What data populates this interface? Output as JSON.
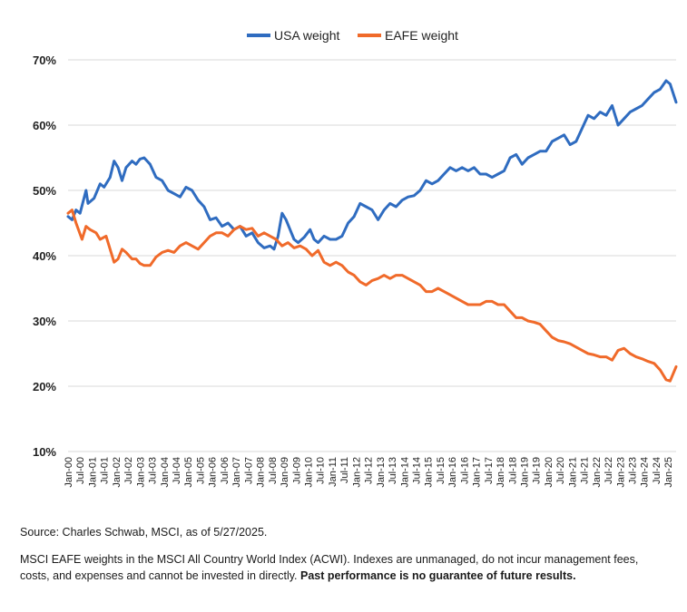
{
  "legend": [
    "USA weight",
    "EAFE weight"
  ],
  "colors": {
    "usa": "#2f6cc0",
    "eafe": "#f06a2a",
    "grid": "#d9d9d9"
  },
  "notes": {
    "source": "Source: Charles Schwab, MSCI, as of 5/27/2025.",
    "disclaimer": "MSCI EAFE weights in the MSCI All Country World Index (ACWI). Indexes are unmanaged, do not incur management fees, costs, and expenses and cannot be invested in directly.",
    "disclaimer_bold": "Past performance is no guarantee of future results."
  },
  "chart_data": {
    "type": "line",
    "title": "",
    "xlabel": "",
    "ylabel": "",
    "ylim": [
      10,
      70
    ],
    "yticks": [
      "10%",
      "20%",
      "30%",
      "40%",
      "50%",
      "60%",
      "70%"
    ],
    "grid": true,
    "legend_position": "top-center",
    "x_tick_labels": [
      "Jan-00",
      "Jul-00",
      "Jan-01",
      "Jul-01",
      "Jan-02",
      "Jul-02",
      "Jan-03",
      "Jul-03",
      "Jan-04",
      "Jul-04",
      "Jan-05",
      "Jul-05",
      "Jan-06",
      "Jul-06",
      "Jan-07",
      "Jul-07",
      "Jan-08",
      "Jul-08",
      "Jan-09",
      "Jul-09",
      "Jan-10",
      "Jul-10",
      "Jan-11",
      "Jul-11",
      "Jan-12",
      "Jul-12",
      "Jan-13",
      "Jul-13",
      "Jan-14",
      "Jul-14",
      "Jan-15",
      "Jul-15",
      "Jan-16",
      "Jul-16",
      "Jan-17",
      "Jul-17",
      "Jan-18",
      "Jul-18",
      "Jan-19",
      "Jul-19",
      "Jan-20",
      "Jul-20",
      "Jan-21",
      "Jul-21",
      "Jan-22",
      "Jul-22",
      "Jan-23",
      "Jul-23",
      "Jan-24",
      "Jul-24",
      "Jan-25"
    ],
    "x_range": [
      "2000-01",
      "2025-05"
    ],
    "series": [
      {
        "name": "USA weight",
        "color": "#2f6cc0",
        "points": [
          [
            "2000-01",
            46
          ],
          [
            "2000-03",
            45.5
          ],
          [
            "2000-05",
            47
          ],
          [
            "2000-07",
            46.5
          ],
          [
            "2000-10",
            50
          ],
          [
            "2000-11",
            48
          ],
          [
            "2001-02",
            48.8
          ],
          [
            "2001-05",
            51
          ],
          [
            "2001-07",
            50.5
          ],
          [
            "2001-10",
            52
          ],
          [
            "2001-12",
            54.5
          ],
          [
            "2002-02",
            53.5
          ],
          [
            "2002-04",
            51.5
          ],
          [
            "2002-06",
            53.5
          ],
          [
            "2002-09",
            54.5
          ],
          [
            "2002-11",
            54
          ],
          [
            "2003-01",
            54.8
          ],
          [
            "2003-03",
            55
          ],
          [
            "2003-06",
            54
          ],
          [
            "2003-09",
            52
          ],
          [
            "2003-12",
            51.5
          ],
          [
            "2004-03",
            50
          ],
          [
            "2004-06",
            49.5
          ],
          [
            "2004-09",
            49
          ],
          [
            "2004-12",
            50.5
          ],
          [
            "2005-03",
            50
          ],
          [
            "2005-06",
            48.5
          ],
          [
            "2005-09",
            47.5
          ],
          [
            "2005-12",
            45.5
          ],
          [
            "2006-03",
            45.8
          ],
          [
            "2006-06",
            44.5
          ],
          [
            "2006-09",
            45
          ],
          [
            "2006-12",
            44
          ],
          [
            "2007-03",
            44.5
          ],
          [
            "2007-06",
            43
          ],
          [
            "2007-09",
            43.5
          ],
          [
            "2007-12",
            42
          ],
          [
            "2008-03",
            41.2
          ],
          [
            "2008-06",
            41.5
          ],
          [
            "2008-08",
            41
          ],
          [
            "2008-10",
            43
          ],
          [
            "2008-12",
            46.5
          ],
          [
            "2009-02",
            45.5
          ],
          [
            "2009-04",
            44
          ],
          [
            "2009-06",
            42.5
          ],
          [
            "2009-08",
            42
          ],
          [
            "2009-11",
            42.8
          ],
          [
            "2010-02",
            44
          ],
          [
            "2010-04",
            42.5
          ],
          [
            "2010-06",
            42
          ],
          [
            "2010-09",
            43
          ],
          [
            "2010-12",
            42.5
          ],
          [
            "2011-03",
            42.5
          ],
          [
            "2011-06",
            43
          ],
          [
            "2011-09",
            45
          ],
          [
            "2011-12",
            46
          ],
          [
            "2012-03",
            48
          ],
          [
            "2012-06",
            47.5
          ],
          [
            "2012-09",
            47
          ],
          [
            "2012-12",
            45.5
          ],
          [
            "2013-03",
            47
          ],
          [
            "2013-06",
            48
          ],
          [
            "2013-09",
            47.5
          ],
          [
            "2013-12",
            48.5
          ],
          [
            "2014-03",
            49
          ],
          [
            "2014-06",
            49.2
          ],
          [
            "2014-09",
            50
          ],
          [
            "2014-12",
            51.5
          ],
          [
            "2015-03",
            51
          ],
          [
            "2015-06",
            51.5
          ],
          [
            "2015-09",
            52.5
          ],
          [
            "2015-12",
            53.5
          ],
          [
            "2016-03",
            53
          ],
          [
            "2016-06",
            53.5
          ],
          [
            "2016-09",
            53
          ],
          [
            "2016-12",
            53.5
          ],
          [
            "2017-03",
            52.5
          ],
          [
            "2017-06",
            52.5
          ],
          [
            "2017-09",
            52
          ],
          [
            "2017-12",
            52.5
          ],
          [
            "2018-03",
            53
          ],
          [
            "2018-06",
            55
          ],
          [
            "2018-09",
            55.5
          ],
          [
            "2018-12",
            54
          ],
          [
            "2019-03",
            55
          ],
          [
            "2019-06",
            55.5
          ],
          [
            "2019-09",
            56
          ],
          [
            "2019-12",
            56
          ],
          [
            "2020-03",
            57.5
          ],
          [
            "2020-06",
            58
          ],
          [
            "2020-09",
            58.5
          ],
          [
            "2020-12",
            57
          ],
          [
            "2021-03",
            57.5
          ],
          [
            "2021-06",
            59.5
          ],
          [
            "2021-09",
            61.5
          ],
          [
            "2021-12",
            61
          ],
          [
            "2022-03",
            62
          ],
          [
            "2022-06",
            61.5
          ],
          [
            "2022-09",
            63
          ],
          [
            "2022-12",
            60
          ],
          [
            "2023-03",
            61
          ],
          [
            "2023-06",
            62
          ],
          [
            "2023-09",
            62.5
          ],
          [
            "2023-12",
            63
          ],
          [
            "2024-03",
            64
          ],
          [
            "2024-06",
            65
          ],
          [
            "2024-09",
            65.5
          ],
          [
            "2024-12",
            66.8
          ],
          [
            "2025-02",
            66.3
          ],
          [
            "2025-05",
            63.5
          ]
        ]
      },
      {
        "name": "EAFE weight",
        "color": "#f06a2a",
        "points": [
          [
            "2000-01",
            46.5
          ],
          [
            "2000-03",
            47
          ],
          [
            "2000-05",
            45
          ],
          [
            "2000-08",
            42.5
          ],
          [
            "2000-10",
            44.5
          ],
          [
            "2000-12",
            44
          ],
          [
            "2001-03",
            43.5
          ],
          [
            "2001-05",
            42.5
          ],
          [
            "2001-08",
            43
          ],
          [
            "2001-10",
            41
          ],
          [
            "2001-12",
            39
          ],
          [
            "2002-02",
            39.5
          ],
          [
            "2002-04",
            41
          ],
          [
            "2002-06",
            40.5
          ],
          [
            "2002-09",
            39.5
          ],
          [
            "2002-11",
            39.5
          ],
          [
            "2003-01",
            38.8
          ],
          [
            "2003-03",
            38.5
          ],
          [
            "2003-06",
            38.5
          ],
          [
            "2003-09",
            39.8
          ],
          [
            "2003-12",
            40.5
          ],
          [
            "2004-03",
            40.8
          ],
          [
            "2004-06",
            40.5
          ],
          [
            "2004-09",
            41.5
          ],
          [
            "2004-12",
            42
          ],
          [
            "2005-03",
            41.5
          ],
          [
            "2005-06",
            41
          ],
          [
            "2005-09",
            42
          ],
          [
            "2005-12",
            43
          ],
          [
            "2006-03",
            43.5
          ],
          [
            "2006-06",
            43.5
          ],
          [
            "2006-09",
            43
          ],
          [
            "2006-12",
            44
          ],
          [
            "2007-03",
            44.5
          ],
          [
            "2007-06",
            44
          ],
          [
            "2007-09",
            44.2
          ],
          [
            "2007-12",
            43
          ],
          [
            "2008-03",
            43.5
          ],
          [
            "2008-06",
            43
          ],
          [
            "2008-09",
            42.5
          ],
          [
            "2008-12",
            41.5
          ],
          [
            "2009-03",
            42
          ],
          [
            "2009-06",
            41.2
          ],
          [
            "2009-09",
            41.5
          ],
          [
            "2009-12",
            41
          ],
          [
            "2010-03",
            40
          ],
          [
            "2010-06",
            40.8
          ],
          [
            "2010-09",
            39
          ],
          [
            "2010-12",
            38.5
          ],
          [
            "2011-03",
            39
          ],
          [
            "2011-06",
            38.5
          ],
          [
            "2011-09",
            37.5
          ],
          [
            "2011-12",
            37
          ],
          [
            "2012-03",
            36
          ],
          [
            "2012-06",
            35.5
          ],
          [
            "2012-09",
            36.2
          ],
          [
            "2012-12",
            36.5
          ],
          [
            "2013-03",
            37
          ],
          [
            "2013-06",
            36.5
          ],
          [
            "2013-09",
            37
          ],
          [
            "2013-12",
            37
          ],
          [
            "2014-03",
            36.5
          ],
          [
            "2014-06",
            36
          ],
          [
            "2014-09",
            35.5
          ],
          [
            "2014-12",
            34.5
          ],
          [
            "2015-03",
            34.5
          ],
          [
            "2015-06",
            35
          ],
          [
            "2015-09",
            34.5
          ],
          [
            "2015-12",
            34
          ],
          [
            "2016-03",
            33.5
          ],
          [
            "2016-06",
            33
          ],
          [
            "2016-09",
            32.5
          ],
          [
            "2016-12",
            32.5
          ],
          [
            "2017-03",
            32.5
          ],
          [
            "2017-06",
            33
          ],
          [
            "2017-09",
            33
          ],
          [
            "2017-12",
            32.5
          ],
          [
            "2018-03",
            32.5
          ],
          [
            "2018-06",
            31.5
          ],
          [
            "2018-09",
            30.5
          ],
          [
            "2018-12",
            30.5
          ],
          [
            "2019-03",
            30
          ],
          [
            "2019-06",
            29.8
          ],
          [
            "2019-09",
            29.5
          ],
          [
            "2019-12",
            28.5
          ],
          [
            "2020-03",
            27.5
          ],
          [
            "2020-06",
            27
          ],
          [
            "2020-09",
            26.8
          ],
          [
            "2020-12",
            26.5
          ],
          [
            "2021-03",
            26
          ],
          [
            "2021-06",
            25.5
          ],
          [
            "2021-09",
            25
          ],
          [
            "2021-12",
            24.8
          ],
          [
            "2022-03",
            24.5
          ],
          [
            "2022-06",
            24.5
          ],
          [
            "2022-09",
            24
          ],
          [
            "2022-12",
            25.5
          ],
          [
            "2023-03",
            25.8
          ],
          [
            "2023-06",
            25
          ],
          [
            "2023-09",
            24.5
          ],
          [
            "2023-12",
            24.2
          ],
          [
            "2024-03",
            23.8
          ],
          [
            "2024-06",
            23.5
          ],
          [
            "2024-09",
            22.5
          ],
          [
            "2024-12",
            21
          ],
          [
            "2025-02",
            20.8
          ],
          [
            "2025-05",
            23
          ]
        ]
      }
    ]
  }
}
